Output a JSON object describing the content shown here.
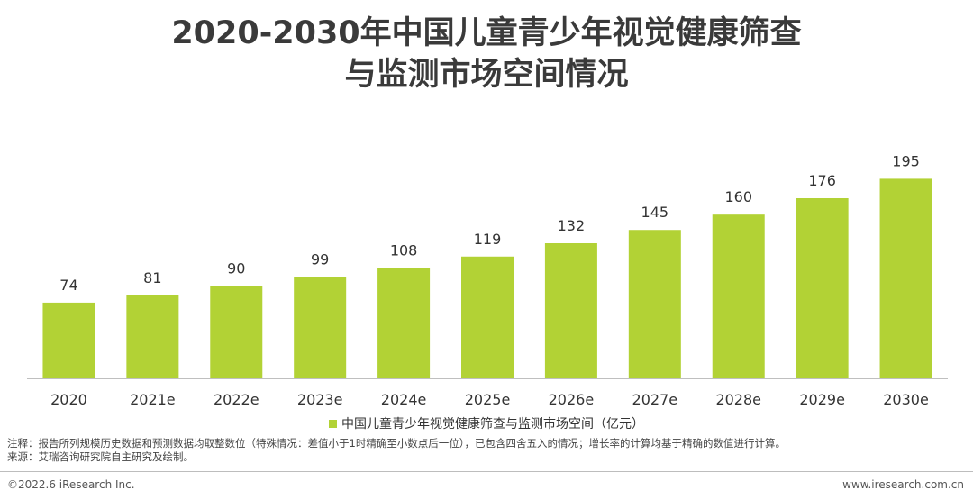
{
  "title_line1": "2020-2030年中国儿童青少年视觉健康筛查",
  "title_line2": "与监测市场空间情况",
  "chart_data": {
    "type": "bar",
    "categories": [
      "2020",
      "2021e",
      "2022e",
      "2023e",
      "2024e",
      "2025e",
      "2026e",
      "2027e",
      "2028e",
      "2029e",
      "2030e"
    ],
    "series": [
      {
        "name": "中国儿童青少年视觉健康筛查与监测市场空间（亿元）",
        "values": [
          74,
          81,
          90,
          99,
          108,
          119,
          132,
          145,
          160,
          176,
          195
        ],
        "color": "#b2d235"
      }
    ],
    "ylim": [
      0,
      220
    ],
    "grid": false,
    "legend_position": "bottom"
  },
  "notes": {
    "note": "注释：报告所列规模历史数据和预测数据均取整数位（特殊情况：差值小于1时精确至小数点后一位），已包含四舍五入的情况；增长率的计算均基于精确的数值进行计算。",
    "source": "来源：艾瑞咨询研究院自主研究及绘制。"
  },
  "footer": {
    "copyright": "©2022.6 iResearch Inc.",
    "website": "www.iresearch.com.cn"
  }
}
